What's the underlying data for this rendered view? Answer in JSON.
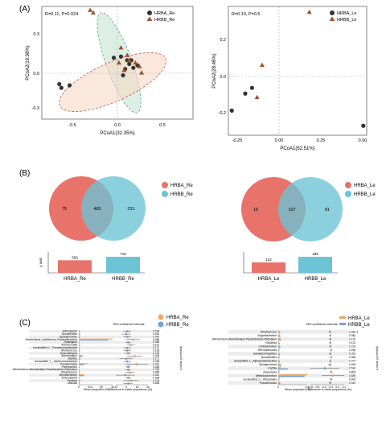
{
  "panels": {
    "A": "(A)",
    "B": "(B)",
    "C": "(C)"
  },
  "colors": {
    "brown": "#a0522d",
    "dark": "#333333",
    "red": "#e8736a",
    "blue": "#6cc3d5",
    "orange": "#f0a860",
    "steel": "#7aa0d0",
    "green_ellipse": "#cfe8d8",
    "peach_ellipse": "#f6d9c7"
  },
  "chart_data": [
    {
      "type": "scatter",
      "id": "pcoa-re",
      "annotation": "R=0.11, P=0.024",
      "xlabel": "PCoA1(32.35%)",
      "ylabel": "PCoA2(19.98%)",
      "xticks": [
        "-0.5",
        "0.0",
        "0.5"
      ],
      "yticks": [
        "0.3",
        "0.0",
        "-0.3"
      ],
      "xlim": [
        -0.75,
        0.72
      ],
      "ylim": [
        -0.45,
        0.45
      ],
      "legend": [
        "HRBA_Re",
        "HRBB_Re"
      ],
      "series": [
        {
          "name": "HRBA_Re",
          "marker": "circle",
          "points": [
            [
              -0.58,
              -0.17
            ],
            [
              -0.56,
              -0.2
            ],
            [
              -0.48,
              -0.18
            ],
            [
              -0.05,
              0.04
            ],
            [
              0.02,
              0.05
            ],
            [
              0.08,
              0.02
            ],
            [
              0.06,
              -0.05
            ],
            [
              0.12,
              0.02
            ],
            [
              0.18,
              -0.02
            ],
            [
              0.04,
              -0.1
            ],
            [
              0.14,
              -0.04
            ],
            [
              0.1,
              -0.01
            ]
          ]
        },
        {
          "name": "HRBB_Re",
          "marker": "triangle",
          "points": [
            [
              -0.28,
              0.42
            ],
            [
              -0.25,
              0.4
            ],
            [
              0.02,
              0.12
            ],
            [
              0.08,
              0.06
            ],
            [
              0.1,
              0.02
            ],
            [
              0.16,
              0.0
            ],
            [
              0.2,
              -0.03
            ],
            [
              0.22,
              -0.08
            ],
            [
              0.05,
              -0.06
            ],
            [
              0.0,
              0.0
            ]
          ]
        }
      ]
    },
    {
      "type": "scatter",
      "id": "pcoa-le",
      "annotation": "R=0.19, P=0.5",
      "xlabel": "PCoA1(52.51%)",
      "ylabel": "PCoA2(28.46%)",
      "xticks": [
        "-0.25",
        "0.00",
        "0.25",
        "0.50"
      ],
      "yticks": [
        "0.2",
        "0.0",
        "-0.2"
      ],
      "xlim": [
        -0.3,
        0.52
      ],
      "ylim": [
        -0.28,
        0.4
      ],
      "legend": [
        "HRBA_Le",
        "HRBB_Le"
      ],
      "series": [
        {
          "name": "HRBA_Le",
          "marker": "circle",
          "points": [
            [
              -0.28,
              -0.15
            ],
            [
              -0.2,
              -0.06
            ],
            [
              -0.16,
              -0.03
            ],
            [
              0.5,
              -0.23
            ]
          ]
        },
        {
          "name": "HRBB_Le",
          "marker": "triangle",
          "points": [
            [
              0.18,
              0.37
            ],
            [
              -0.1,
              0.09
            ],
            [
              -0.13,
              -0.08
            ]
          ]
        }
      ]
    },
    {
      "type": "venn",
      "id": "venn-re",
      "legend": [
        "HRBA_Re",
        "HRBB_Re"
      ],
      "only_a": "75",
      "shared": "485",
      "only_b": "231",
      "bars": {
        "ylabel": "y axis",
        "categories": [
          "HRBA_Re",
          "HRBB_Re"
        ],
        "values": [
          560,
          716
        ],
        "labels": [
          "560",
          "716"
        ]
      }
    },
    {
      "type": "venn",
      "id": "venn-le",
      "legend": [
        "HRBA_Le",
        "HRBB_Le"
      ],
      "only_a": "15",
      "shared": "107",
      "only_b": "81",
      "bars": {
        "ylabel": "",
        "categories": [
          "HRBA_Le",
          "HRBB_Le"
        ],
        "values": [
          122,
          188
        ],
        "labels": [
          "122",
          "188"
        ]
      }
    },
    {
      "type": "bar",
      "id": "extbar-re",
      "legend": [
        "HRBA_Re",
        "HRBB_Re"
      ],
      "ci_title": "95% confidence intervals",
      "xlabel_left": "Mean proportion (%)",
      "xlabel_right": "Difference in mean proportions (%)",
      "pvalue_label": "p-value (corrected)",
      "xticks_left": [
        "0",
        "10.0",
        "20",
        "30"
      ],
      "xticks_right": [
        "-10",
        "0",
        "10",
        "20"
      ],
      "categories": [
        "Arthrobacter",
        "Nocardioides",
        "Sphingomonas",
        "Burkholderia-Caballeronia-Paraburkholderia",
        "Haliangium",
        "Actinocorallia",
        "unclassified_f__Pseudonocardiaceae",
        "Rhodococcus",
        "Amycolatopsis",
        "Allorhizobium",
        "Bacillus",
        "unclassified_f__Xanthomonadaceae",
        "Pseudomonas",
        "Paenibacillus",
        "Allorhizobium-Neorhizobium-Pararhizobium-Rhizobium",
        "Streptomyces",
        "Mycobacterium",
        "Enterobacter",
        "Pantoea",
        "Massilia"
      ],
      "pvalues": [
        "0.028",
        "0.042",
        "0.043",
        "0.050",
        "0.068",
        "0.110",
        "0.137",
        "0.153",
        "0.193",
        "0.206",
        "0.271",
        "0.298",
        "0.291",
        "0.326",
        "0.329",
        "0.356",
        "0.461",
        "0.484",
        "0.704",
        "0.835"
      ],
      "a_values": [
        0.5,
        0.6,
        0.5,
        16.0,
        0.3,
        0.6,
        0.4,
        0.5,
        0.3,
        2.0,
        0.6,
        0.4,
        4.0,
        0.4,
        0.3,
        0.6,
        2.0,
        0.3,
        0.8,
        0.5
      ],
      "b_values": [
        0.6,
        0.7,
        0.6,
        14.0,
        0.4,
        0.5,
        0.5,
        0.6,
        0.4,
        1.4,
        0.7,
        0.5,
        2.4,
        0.5,
        0.4,
        0.5,
        2.6,
        0.4,
        0.6,
        0.6
      ],
      "diff": [
        -1,
        -1.5,
        -1,
        2,
        -0.5,
        1,
        -1,
        -1,
        -0.5,
        3,
        -1.5,
        -1,
        4,
        -0.5,
        -0.5,
        0.5,
        -2,
        -0.5,
        1,
        -0.5
      ],
      "ci": [
        [
          -3,
          1
        ],
        [
          -4,
          1
        ],
        [
          -3,
          1
        ],
        [
          -2,
          6
        ],
        [
          -2,
          1
        ],
        [
          -1,
          3
        ],
        [
          -3,
          1
        ],
        [
          -3,
          1
        ],
        [
          -2,
          1
        ],
        [
          -1,
          7
        ],
        [
          -5,
          2
        ],
        [
          -3,
          1
        ],
        [
          -2,
          10
        ],
        [
          -2,
          1
        ],
        [
          -2,
          1
        ],
        [
          -2,
          3
        ],
        [
          -7,
          3
        ],
        [
          -2,
          1
        ],
        [
          -3,
          5
        ],
        [
          -3,
          2
        ]
      ]
    },
    {
      "type": "bar",
      "id": "extbar-le",
      "legend": [
        "HRBA_Le",
        "HRBB_Le"
      ],
      "ci_title": "95% confidence intervals",
      "xlabel_left": "Mean proportion (%)",
      "xlabel_right": "Difference in mean proportions (%)",
      "pvalue_label": "p-value (corrected)",
      "xticks_left": [
        "0",
        "0.5"
      ],
      "xticks_right": [
        "-0.8",
        "-0.6",
        "-0.4",
        "-0.2",
        "0.0",
        "0.2"
      ],
      "categories": [
        "Rhodococcus",
        "Frigoribacterium",
        "Allorhizobium-Neorhizobium-Pararhizobium-Rhizobium",
        "Ralstonia",
        "Curtobacterium",
        "Brevundimonas",
        "Gaiellaterrimaphilus",
        "Nocardioides",
        "unclassified_f__Alphaproteobacteria",
        "Sphingomonas",
        "Kurthia",
        "Rosenomia",
        "Methylobacterium",
        "unclassified_o__Rhizobiales",
        "Pseudomonas"
      ],
      "pvalues": [
        "2.56e-3",
        "0.084",
        "0.119",
        "0.131",
        "0.219",
        "0.260",
        "0.332",
        "0.350",
        "0.372",
        "0.454",
        "0.534",
        "0.802",
        "0.889",
        "0.902",
        "0.942"
      ],
      "a_values": [
        0.02,
        0.03,
        0.04,
        0.02,
        0.03,
        0.03,
        0.02,
        0.03,
        0.02,
        0.04,
        0.05,
        0.03,
        0.55,
        0.03,
        0.03
      ],
      "b_values": [
        0.04,
        0.04,
        0.05,
        0.03,
        0.04,
        0.02,
        0.03,
        0.02,
        0.03,
        0.06,
        0.18,
        0.02,
        0.5,
        0.02,
        0.04
      ],
      "diff": [
        -0.02,
        -0.01,
        -0.01,
        -0.01,
        -0.01,
        0.01,
        -0.01,
        0.01,
        -0.01,
        -0.02,
        -0.13,
        0.01,
        0.05,
        0.01,
        -0.01
      ],
      "ci": [
        [
          -0.04,
          0.0
        ],
        [
          -0.03,
          0.01
        ],
        [
          -0.03,
          0.01
        ],
        [
          -0.03,
          0.01
        ],
        [
          -0.03,
          0.01
        ],
        [
          -0.01,
          0.03
        ],
        [
          -0.03,
          0.01
        ],
        [
          -0.01,
          0.03
        ],
        [
          -0.03,
          0.01
        ],
        [
          -0.06,
          0.02
        ],
        [
          -0.45,
          0.19
        ],
        [
          -0.02,
          0.04
        ],
        [
          -0.2,
          0.3
        ],
        [
          -0.02,
          0.04
        ],
        [
          -0.04,
          0.02
        ]
      ]
    }
  ]
}
